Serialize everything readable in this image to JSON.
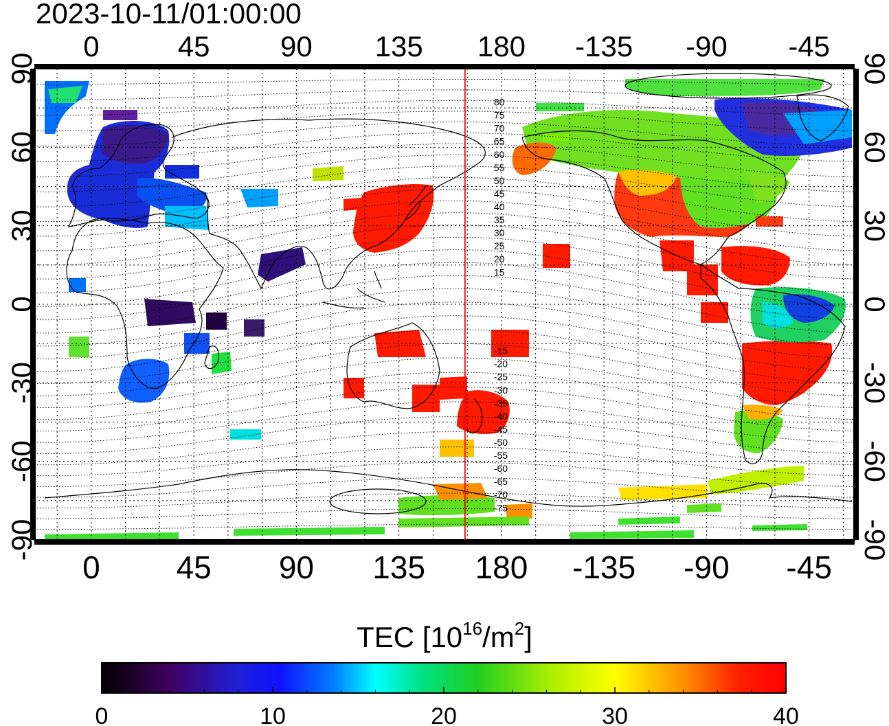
{
  "title": "2023-10-11/01:00:00",
  "map": {
    "type": "global TEC map (equirectangular)",
    "lon_range": [
      -25,
      335
    ],
    "lat_range": [
      -90,
      90
    ],
    "top_ticks": [
      "0",
      "45",
      "90",
      "135",
      "180",
      "-135",
      "-90",
      "-45"
    ],
    "bottom_ticks": [
      "0",
      "45",
      "90",
      "135",
      "180",
      "-135",
      "-90",
      "-45"
    ],
    "left_ticks": [
      "90",
      "60",
      "30",
      "0",
      "-30",
      "-60",
      "-90"
    ],
    "right_ticks": [
      "90",
      "60",
      "30",
      "0",
      "-30",
      "-60",
      "-90"
    ],
    "grid": "dotted, 15 degree",
    "meridian_line_lon": 164,
    "meridian_line_color": "#ff0000",
    "magnetic_latitude_labels": [
      "80",
      "75",
      "70",
      "65",
      "60",
      "55",
      "50",
      "45",
      "40",
      "35",
      "30",
      "25",
      "20",
      "15",
      "-15",
      "-20",
      "-25",
      "-30",
      "-35",
      "-40",
      "-45",
      "-50",
      "-55",
      "-60",
      "-65",
      "-70",
      "-75"
    ]
  },
  "colorbar": {
    "title_prefix": "TEC  [10",
    "title_exp1": "16",
    "title_mid": "/m",
    "title_exp2": "2",
    "title_suffix": "]",
    "ticks": [
      "0",
      "10",
      "20",
      "30",
      "40"
    ],
    "min": 0,
    "max": 40,
    "colors": [
      "#000000",
      "#400060",
      "#1010ff",
      "#0090ff",
      "#00ffff",
      "#00e060",
      "#20d020",
      "#b0f000",
      "#ffff00",
      "#ff9000",
      "#ff0000"
    ]
  }
}
